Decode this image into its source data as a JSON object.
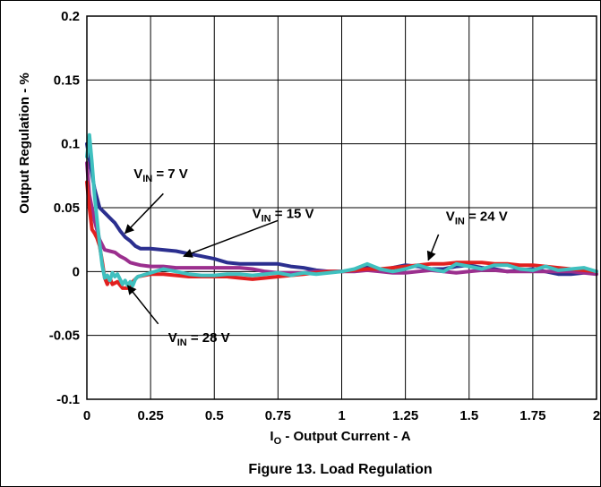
{
  "chart_data": {
    "type": "line",
    "title": "",
    "caption": "Figure 13. Load Regulation",
    "xlabel": {
      "main": "I",
      "sub": "O",
      "rest": " - Output Current - A"
    },
    "ylabel": "Output Regulation - %",
    "xlim": [
      0,
      2
    ],
    "ylim": [
      -0.1,
      0.2
    ],
    "x_ticks": [
      {
        "value": 0,
        "label": "0"
      },
      {
        "value": 0.25,
        "label": "0.25"
      },
      {
        "value": 0.5,
        "label": "0.5"
      },
      {
        "value": 0.75,
        "label": "0.75"
      },
      {
        "value": 1,
        "label": "1"
      },
      {
        "value": 1.25,
        "label": "1.25"
      },
      {
        "value": 1.5,
        "label": "1.5"
      },
      {
        "value": 1.75,
        "label": "1.75"
      },
      {
        "value": 2,
        "label": "2"
      }
    ],
    "y_ticks": [
      {
        "value": 0.2,
        "label": "0.2"
      },
      {
        "value": 0.15,
        "label": "0.15"
      },
      {
        "value": 0.1,
        "label": "0.1"
      },
      {
        "value": 0.05,
        "label": "0.05"
      },
      {
        "value": 0,
        "label": "0"
      },
      {
        "value": -0.05,
        "label": "-0.05"
      },
      {
        "value": -0.1,
        "label": "-0.1"
      }
    ],
    "grid": true,
    "series": [
      {
        "key": "vin7",
        "color": "#2b2f8f",
        "x": [
          0.0,
          0.01,
          0.03,
          0.05,
          0.07,
          0.09,
          0.11,
          0.13,
          0.15,
          0.17,
          0.19,
          0.21,
          0.25,
          0.3,
          0.35,
          0.4,
          0.45,
          0.5,
          0.55,
          0.6,
          0.65,
          0.7,
          0.75,
          0.8,
          0.85,
          0.9,
          0.95,
          1.0,
          1.05,
          1.1,
          1.15,
          1.2,
          1.25,
          1.3,
          1.35,
          1.4,
          1.45,
          1.5,
          1.55,
          1.6,
          1.65,
          1.7,
          1.75,
          1.8,
          1.85,
          1.9,
          1.95,
          2.0
        ],
        "y": [
          0.1,
          0.088,
          0.065,
          0.05,
          0.046,
          0.042,
          0.038,
          0.032,
          0.027,
          0.024,
          0.02,
          0.018,
          0.018,
          0.017,
          0.016,
          0.014,
          0.012,
          0.01,
          0.007,
          0.006,
          0.006,
          0.006,
          0.006,
          0.004,
          0.003,
          0.001,
          0.0,
          0.0,
          0.001,
          0.004,
          0.001,
          0.003,
          0.005,
          0.004,
          0.002,
          0.002,
          0.004,
          0.005,
          0.003,
          0.002,
          0.0,
          0.001,
          0.002,
          0.0,
          -0.002,
          -0.002,
          -0.001,
          0.0
        ]
      },
      {
        "key": "vin15",
        "color": "#9b2f8e",
        "x": [
          0.0,
          0.01,
          0.03,
          0.05,
          0.07,
          0.09,
          0.11,
          0.13,
          0.15,
          0.17,
          0.19,
          0.21,
          0.25,
          0.3,
          0.35,
          0.4,
          0.45,
          0.5,
          0.55,
          0.6,
          0.65,
          0.7,
          0.75,
          0.8,
          0.85,
          0.9,
          0.95,
          1.0,
          1.05,
          1.1,
          1.15,
          1.2,
          1.25,
          1.3,
          1.35,
          1.4,
          1.45,
          1.5,
          1.55,
          1.6,
          1.65,
          1.7,
          1.75,
          1.8,
          1.85,
          1.9,
          1.95,
          2.0
        ],
        "y": [
          0.085,
          0.06,
          0.04,
          0.025,
          0.017,
          0.016,
          0.015,
          0.012,
          0.01,
          0.007,
          0.006,
          0.005,
          0.004,
          0.004,
          0.003,
          0.003,
          0.003,
          0.003,
          0.003,
          0.003,
          0.002,
          0.0,
          -0.001,
          -0.001,
          -0.001,
          0.0,
          0.0,
          0.0,
          0.0,
          0.001,
          0.0,
          -0.001,
          -0.001,
          0.0,
          0.001,
          0.0,
          -0.001,
          0.0,
          0.001,
          0.001,
          0.0,
          0.0,
          0.0,
          0.0,
          0.0,
          0.0,
          -0.001,
          -0.002
        ]
      },
      {
        "key": "vin24",
        "color": "#e2201f",
        "x": [
          0.0,
          0.01,
          0.02,
          0.03,
          0.04,
          0.05,
          0.06,
          0.07,
          0.08,
          0.09,
          0.1,
          0.12,
          0.14,
          0.16,
          0.18,
          0.2,
          0.25,
          0.3,
          0.35,
          0.4,
          0.45,
          0.5,
          0.55,
          0.6,
          0.65,
          0.7,
          0.75,
          0.8,
          0.85,
          0.9,
          0.95,
          1.0,
          1.05,
          1.1,
          1.15,
          1.2,
          1.25,
          1.3,
          1.35,
          1.4,
          1.45,
          1.5,
          1.55,
          1.6,
          1.65,
          1.7,
          1.75,
          1.8,
          1.85,
          1.9,
          1.95,
          2.0
        ],
        "y": [
          0.07,
          0.05,
          0.033,
          0.03,
          0.026,
          0.02,
          0.008,
          -0.005,
          -0.01,
          -0.005,
          -0.01,
          -0.008,
          -0.013,
          -0.013,
          -0.008,
          -0.004,
          -0.002,
          -0.002,
          -0.003,
          -0.004,
          -0.004,
          -0.004,
          -0.004,
          -0.005,
          -0.006,
          -0.005,
          -0.004,
          -0.003,
          -0.002,
          -0.001,
          0.0,
          0.0,
          0.001,
          0.002,
          0.002,
          0.003,
          0.004,
          0.005,
          0.006,
          0.006,
          0.007,
          0.007,
          0.007,
          0.006,
          0.006,
          0.005,
          0.005,
          0.004,
          0.003,
          0.002,
          0.001,
          0.0
        ]
      },
      {
        "key": "vin28",
        "color": "#3fc0bf",
        "x": [
          0.0,
          0.01,
          0.02,
          0.03,
          0.04,
          0.05,
          0.06,
          0.07,
          0.08,
          0.09,
          0.1,
          0.11,
          0.12,
          0.13,
          0.14,
          0.15,
          0.16,
          0.17,
          0.18,
          0.19,
          0.2,
          0.25,
          0.3,
          0.35,
          0.4,
          0.45,
          0.5,
          0.55,
          0.6,
          0.65,
          0.7,
          0.75,
          0.8,
          0.85,
          0.9,
          0.95,
          1.0,
          1.05,
          1.1,
          1.15,
          1.2,
          1.25,
          1.3,
          1.35,
          1.4,
          1.45,
          1.5,
          1.55,
          1.6,
          1.65,
          1.7,
          1.75,
          1.8,
          1.85,
          1.9,
          1.95,
          2.0
        ],
        "y": [
          0.09,
          0.107,
          0.085,
          0.06,
          0.04,
          0.022,
          0.005,
          -0.005,
          -0.003,
          -0.007,
          -0.001,
          -0.004,
          -0.002,
          -0.006,
          -0.01,
          -0.007,
          -0.011,
          -0.008,
          -0.011,
          -0.006,
          -0.004,
          -0.001,
          0.002,
          0.0,
          -0.002,
          -0.003,
          -0.003,
          -0.002,
          -0.002,
          -0.003,
          -0.002,
          -0.001,
          -0.003,
          -0.001,
          -0.002,
          -0.001,
          0.0,
          0.002,
          0.006,
          0.002,
          0.0,
          0.002,
          0.005,
          0.002,
          0.0,
          0.006,
          0.004,
          0.002,
          0.005,
          0.005,
          0.002,
          0.001,
          0.004,
          0.001,
          0.002,
          0.003,
          0.0
        ]
      }
    ],
    "annotations": [
      {
        "key": "vin7",
        "label_main": "V",
        "label_sub": "IN",
        "label_rest": " = 7 V",
        "text_at": [
          0.29,
          0.073
        ],
        "arrow_from": [
          0.3,
          0.061
        ],
        "arrow_to": [
          0.15,
          0.03
        ]
      },
      {
        "key": "vin15",
        "label_main": "V",
        "label_sub": "IN",
        "label_rest": " = 15 V",
        "text_at": [
          0.77,
          0.042
        ],
        "arrow_from": [
          0.75,
          0.04
        ],
        "arrow_to": [
          0.38,
          0.012
        ]
      },
      {
        "key": "vin24",
        "label_main": "V",
        "label_sub": "IN",
        "label_rest": " = 24 V",
        "text_at": [
          1.53,
          0.04
        ],
        "arrow_from": [
          1.38,
          0.029
        ],
        "arrow_to": [
          1.34,
          0.009
        ]
      },
      {
        "key": "vin28",
        "label_main": "V",
        "label_sub": "IN",
        "label_rest": " = 28 V",
        "text_at": [
          0.44,
          -0.055
        ],
        "arrow_from": [
          0.28,
          -0.041
        ],
        "arrow_to": [
          0.16,
          -0.011
        ]
      }
    ]
  }
}
